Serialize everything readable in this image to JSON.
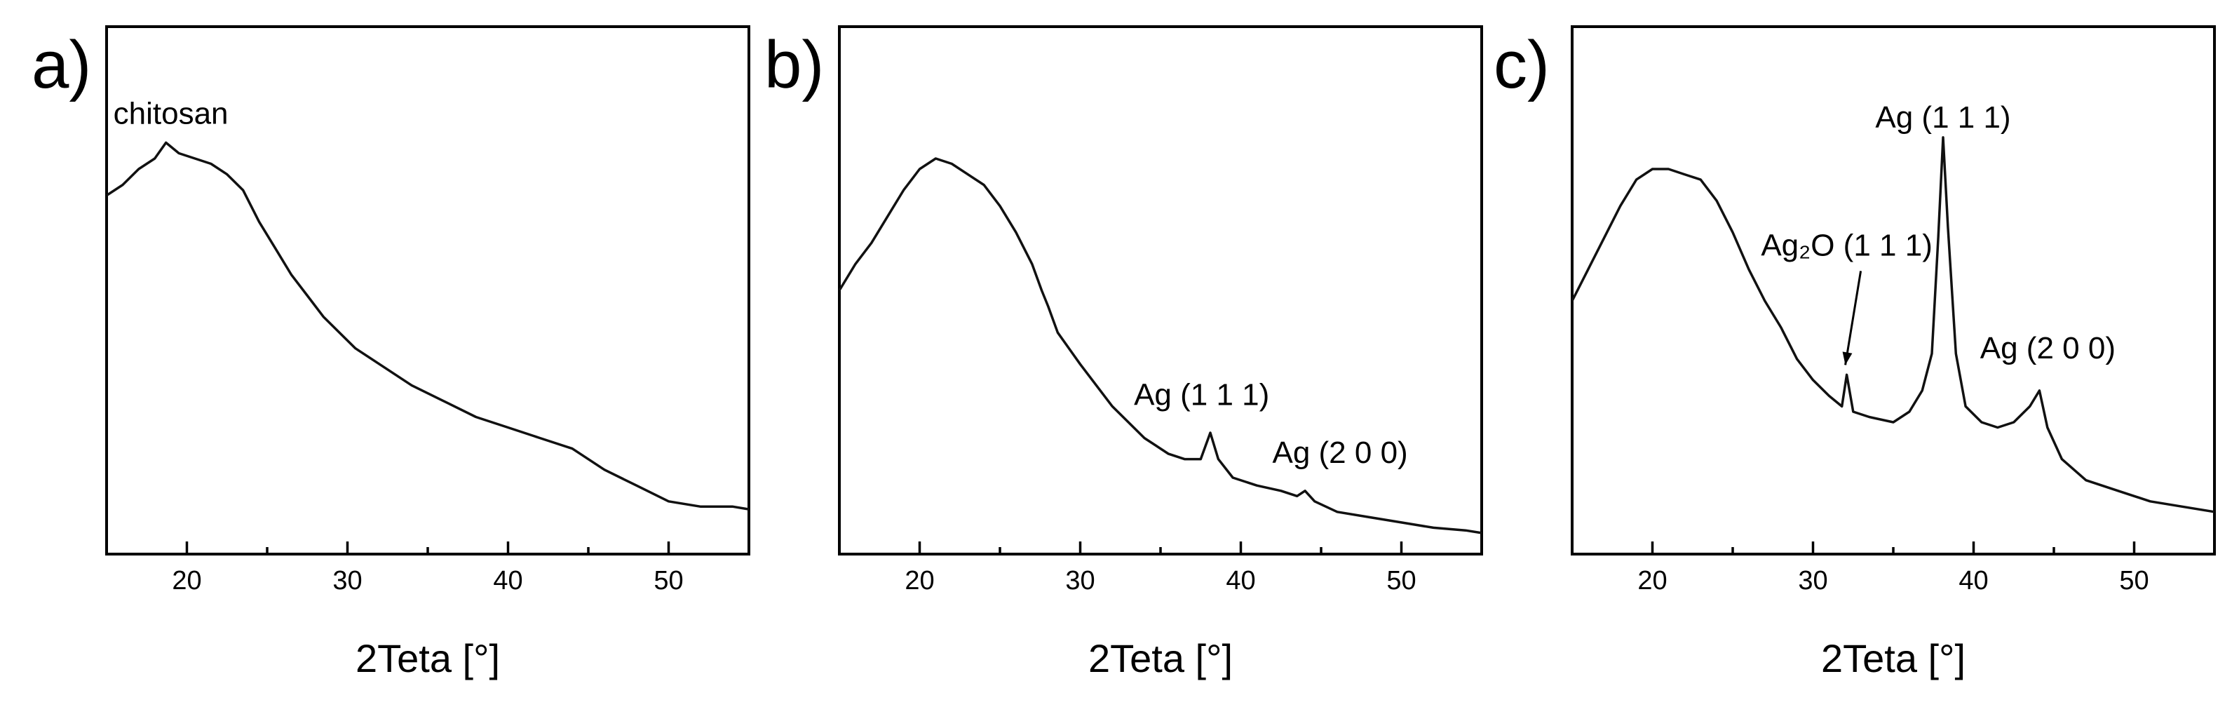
{
  "chart_data": [
    {
      "type": "line",
      "panel_label": "a)",
      "xlabel": "2Teta [°]",
      "ylabel": "",
      "xlim": [
        15,
        55
      ],
      "ylim": [
        0,
        100
      ],
      "xticks": [
        20,
        30,
        40,
        50
      ],
      "y_tick_labels_shown": false,
      "series": [
        {
          "x": [
            15,
            16,
            17,
            18,
            18.7,
            19.5,
            20.5,
            21.5,
            22.5,
            23.5,
            24.5,
            25.5,
            26.5,
            27.5,
            28.5,
            29.5,
            30.5,
            32,
            34,
            36,
            38,
            40,
            42,
            44,
            46,
            48,
            50,
            52,
            54,
            55
          ],
          "y": [
            68,
            70,
            73,
            75,
            78,
            76,
            75,
            74,
            72,
            69,
            63,
            58,
            53,
            49,
            45,
            42,
            39,
            36,
            32,
            29,
            26,
            24,
            22,
            20,
            16,
            13,
            10,
            9,
            9,
            8.5
          ]
        }
      ],
      "annotations": [
        {
          "text": "chitosan",
          "x": 19,
          "y": 80
        }
      ]
    },
    {
      "type": "line",
      "panel_label": "b)",
      "xlabel": "2Teta [°]",
      "ylabel": "",
      "xlim": [
        15,
        55
      ],
      "ylim": [
        0,
        100
      ],
      "xticks": [
        20,
        30,
        40,
        50
      ],
      "y_tick_labels_shown": false,
      "series": [
        {
          "x": [
            15,
            16,
            17,
            18,
            19,
            20,
            21,
            22,
            23,
            24,
            25,
            26,
            27,
            27.6,
            28,
            28.6,
            30,
            32,
            34,
            35.5,
            36.5,
            37.5,
            38.1,
            38.6,
            39.5,
            41,
            42.5,
            43.5,
            44,
            44.6,
            46,
            48,
            50,
            52,
            54,
            55
          ],
          "y": [
            50,
            55,
            59,
            64,
            69,
            73,
            75,
            74,
            72,
            70,
            66,
            61,
            55,
            50,
            47,
            42,
            36,
            28,
            22,
            19,
            18,
            18,
            23,
            18,
            14.5,
            13,
            12,
            11,
            12,
            10,
            8,
            7,
            6,
            5,
            4.5,
            4
          ]
        }
      ],
      "annotations": [
        {
          "text": "Ag (1 1 1)",
          "x": 38,
          "y": 24
        },
        {
          "text": "Ag (2 0 0)",
          "x": 44,
          "y": 12
        }
      ]
    },
    {
      "type": "line",
      "panel_label": "c)",
      "xlabel": "2Teta [°]",
      "ylabel": "",
      "xlim": [
        15,
        55
      ],
      "ylim": [
        0,
        100
      ],
      "xticks": [
        20,
        30,
        40,
        50
      ],
      "y_tick_labels_shown": false,
      "series": [
        {
          "x": [
            15,
            16,
            17,
            18,
            19,
            20,
            21,
            22,
            23,
            24,
            25,
            26,
            27,
            28,
            29,
            30,
            31,
            31.8,
            32.1,
            32.5,
            33.5,
            35,
            36,
            36.8,
            37.4,
            37.8,
            38.1,
            38.4,
            38.9,
            39.5,
            40.5,
            41.5,
            42.5,
            43.5,
            44.1,
            44.6,
            45.5,
            47,
            49,
            51,
            53,
            55
          ],
          "y": [
            48,
            54,
            60,
            66,
            71,
            73,
            73,
            72,
            71,
            67,
            61,
            54,
            48,
            43,
            37,
            33,
            30,
            28,
            34,
            27,
            26,
            25,
            27,
            31,
            38,
            60,
            79,
            62,
            38,
            28,
            25,
            24,
            25,
            28,
            31,
            24,
            18,
            14,
            12,
            10,
            9,
            8
          ]
        }
      ],
      "annotations": [
        {
          "text": "Ag (1 1 1)",
          "x": 38.1,
          "y": 79
        },
        {
          "text": "Ag₂O (1 1 1)",
          "x": 32.1,
          "y": 34
        },
        {
          "text": "Ag (2 0 0)",
          "x": 44.1,
          "y": 31
        }
      ]
    }
  ]
}
